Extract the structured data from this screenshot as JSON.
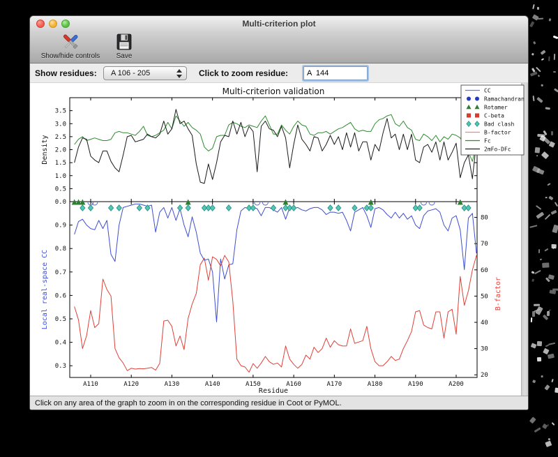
{
  "window": {
    "title": "Multi-criterion plot"
  },
  "toolbar": {
    "show_hide_label": "Show/hide controls",
    "save_label": "Save"
  },
  "controls": {
    "show_residues_label": "Show residues:",
    "show_residues_value": "A 106 - 205",
    "zoom_residue_label": "Click to zoom residue:",
    "zoom_residue_value": "A  144"
  },
  "status_bar": {
    "text": "Click on any area of the graph to zoom in on the corresponding residue in Coot or PyMOL."
  },
  "chart_data": {
    "type": "line",
    "title": "Multi-criterion validation",
    "x_label": "Residue",
    "x_range": [
      104.85,
      205.15
    ],
    "x_tick_values": [
      110,
      120,
      130,
      140,
      150,
      160,
      170,
      180,
      190,
      200
    ],
    "x_tick_labels": [
      "A110",
      "A120",
      "A130",
      "A140",
      "A150",
      "A160",
      "A170",
      "A180",
      "A190",
      "A200"
    ],
    "x_start": 106,
    "x_step": 1,
    "top_panel": {
      "y_label": "Density",
      "y_range": [
        0,
        4.0
      ],
      "y_tick_values": [
        0.0,
        0.5,
        1.0,
        1.5,
        2.0,
        2.5,
        3.0,
        3.5
      ],
      "y_tick_labels": [
        "0.0",
        "0.5",
        "1.0",
        "1.5",
        "2.0",
        "2.5",
        "3.0",
        "3.5"
      ],
      "series": [
        {
          "name": "Fc",
          "color": "#2e8b2e",
          "values": [
            2.2,
            2.4,
            2.5,
            2.35,
            2.4,
            2.45,
            2.4,
            2.35,
            2.35,
            2.4,
            2.65,
            2.7,
            2.65,
            2.65,
            2.6,
            2.55,
            2.7,
            2.9,
            2.55,
            2.5,
            2.55,
            2.65,
            2.75,
            3.05,
            2.8,
            3.3,
            3.1,
            2.9,
            3.05,
            2.85,
            2.75,
            2.6,
            2.1,
            1.95,
            2.05,
            2.5,
            2.55,
            2.55,
            2.95,
            3.05,
            3.0,
            2.9,
            2.85,
            2.95,
            2.9,
            2.85,
            3.1,
            3.3,
            2.95,
            2.6,
            2.6,
            2.95,
            2.75,
            2.6,
            2.9,
            3.1,
            2.95,
            2.9,
            2.6,
            2.55,
            2.65,
            2.65,
            2.7,
            2.6,
            2.7,
            2.8,
            2.85,
            2.95,
            3.05,
            2.8,
            2.7,
            2.75,
            2.7,
            2.7,
            3.0,
            3.15,
            3.2,
            3.3,
            3.35,
            3.0,
            2.9,
            3.1,
            2.85,
            2.75,
            2.4,
            2.35,
            2.6,
            2.5,
            2.35,
            2.55,
            2.3,
            2.5,
            2.4,
            2.6,
            2.55,
            2.45,
            2.2,
            1.9,
            1.55,
            2.2
          ]
        },
        {
          "name": "2mFo-DFc",
          "color": "#1a1a1a",
          "values": [
            1.5,
            2.1,
            2.45,
            2.4,
            1.75,
            1.6,
            1.5,
            1.95,
            1.95,
            1.55,
            1.3,
            1.15,
            1.8,
            2.5,
            2.55,
            2.3,
            2.35,
            2.4,
            2.6,
            2.5,
            2.45,
            2.6,
            3.1,
            2.6,
            2.8,
            3.55,
            3.0,
            3.1,
            2.8,
            2.55,
            1.45,
            0.75,
            0.7,
            1.45,
            0.85,
            1.5,
            2.3,
            2.55,
            2.5,
            3.1,
            2.6,
            3.05,
            2.5,
            2.9,
            2.7,
            1.15,
            2.9,
            3.1,
            2.8,
            2.75,
            2.5,
            2.9,
            2.45,
            1.3,
            2.2,
            2.95,
            2.4,
            2.2,
            1.95,
            2.5,
            2.45,
            1.95,
            2.2,
            2.55,
            2.2,
            2.5,
            2.0,
            2.65,
            2.1,
            2.65,
            1.95,
            2.3,
            2.3,
            1.6,
            2.2,
            1.95,
            2.65,
            3.2,
            2.45,
            2.6,
            2.0,
            2.6,
            2.0,
            2.6,
            1.6,
            1.5,
            2.1,
            2.2,
            1.9,
            2.3,
            1.6,
            2.3,
            1.6,
            1.9,
            2.25,
            0.92,
            1.5,
            1.8,
            0.88,
            2.3
          ]
        }
      ]
    },
    "bottom_panel": {
      "left_y_label": "Local real-space CC",
      "left_y_color": "#3c4fd6",
      "left_y_range": [
        0.25,
        1.0
      ],
      "left_y_tick_values": [
        0.3,
        0.4,
        0.5,
        0.6,
        0.7,
        0.8,
        0.9
      ],
      "left_y_tick_labels": [
        "0.3",
        "0.4",
        "0.5",
        "0.6",
        "0.7",
        "0.8",
        "0.9"
      ],
      "right_y_label": "B-factor",
      "right_y_color": "#e8423a",
      "right_y_range": [
        19,
        86
      ],
      "right_y_tick_values": [
        20,
        30,
        40,
        50,
        60,
        70,
        80
      ],
      "right_y_tick_labels": [
        "20",
        "30",
        "40",
        "50",
        "60",
        "70",
        "80"
      ],
      "series": [
        {
          "name": "CC",
          "axis": "left",
          "color": "#3d4ed0",
          "values": [
            0.86,
            0.915,
            0.925,
            0.9,
            0.885,
            0.88,
            0.92,
            0.885,
            0.92,
            0.775,
            0.745,
            0.9,
            0.975,
            0.98,
            0.985,
            0.99,
            0.99,
            0.985,
            0.98,
            0.985,
            0.87,
            0.955,
            0.975,
            0.93,
            0.975,
            0.92,
            0.97,
            0.9,
            0.85,
            0.935,
            0.87,
            0.78,
            0.75,
            0.755,
            0.7,
            0.487,
            0.755,
            0.67,
            0.73,
            0.735,
            0.88,
            0.96,
            0.975,
            0.97,
            0.975,
            0.97,
            0.94,
            0.975,
            0.975,
            0.965,
            0.955,
            0.975,
            0.925,
            0.975,
            0.97,
            0.975,
            0.965,
            0.96,
            0.97,
            0.975,
            0.975,
            0.965,
            0.945,
            0.955,
            0.955,
            0.95,
            0.955,
            0.92,
            0.875,
            0.955,
            0.965,
            0.975,
            0.94,
            0.89,
            0.97,
            0.975,
            0.965,
            0.945,
            0.93,
            0.955,
            0.93,
            0.95,
            0.925,
            0.94,
            0.9,
            0.885,
            0.94,
            0.96,
            0.965,
            0.97,
            0.955,
            0.9,
            0.875,
            0.93,
            0.94,
            0.88,
            0.71,
            0.93,
            0.95,
            0.78
          ]
        },
        {
          "name": "B-factor",
          "axis": "right",
          "color": "#df4038",
          "values": [
            46,
            41,
            30,
            35,
            44.5,
            38,
            39.5,
            56.5,
            52.5,
            50,
            30,
            26.5,
            24.5,
            21.6,
            22.5,
            22.2,
            22.4,
            22.3,
            22.5,
            22.8,
            21.8,
            24.4,
            40.5,
            40.8,
            38.5,
            31,
            34.8,
            29.6,
            41.5,
            47,
            51,
            62,
            64.5,
            56,
            65,
            64,
            61.5,
            65.5,
            63,
            48,
            26,
            23.5,
            23,
            21,
            24.3,
            22.5,
            24.5,
            27,
            25,
            24,
            24.5,
            23,
            31,
            26,
            24,
            22.5,
            24,
            27.5,
            26,
            30.5,
            28.5,
            30,
            34,
            30.5,
            33,
            31.5,
            31,
            31,
            37.5,
            32,
            32.5,
            33,
            38.5,
            30,
            25,
            23.5,
            23.5,
            25,
            27,
            25.5,
            26,
            30,
            33,
            36.5,
            44,
            44.5,
            39,
            38,
            37.5,
            44,
            44,
            34,
            44,
            45,
            35.5,
            57.5,
            46.5,
            52,
            60,
            65.5
          ]
        }
      ],
      "markers": {
        "rotamer": {
          "shape": "triangle",
          "fill": "#2e7d32",
          "residues": [
            106,
            107,
            108,
            134,
            158,
            179,
            201
          ]
        },
        "bad_clash": {
          "shape": "diamond",
          "fill": "#53c6b6",
          "stroke": "#1f8a7d",
          "residues": [
            108,
            110,
            115,
            117,
            122,
            124,
            132,
            134,
            138,
            139,
            140,
            144,
            149,
            150,
            155,
            158,
            159,
            160,
            169,
            171,
            175,
            178,
            179,
            190,
            191,
            202,
            203
          ]
        },
        "ramachandran": {
          "shape": "arc",
          "stroke": "#5560d8",
          "residues": [
            110,
            111,
            151,
            153,
            192,
            194
          ]
        }
      }
    },
    "legend": [
      {
        "label": "CC",
        "swatch": "line",
        "color": "#6b79e3"
      },
      {
        "label": "Ramachandran",
        "swatch": "circle",
        "color": "#2438c8"
      },
      {
        "label": "Rotamer",
        "swatch": "triangle",
        "color": "#2e7d32"
      },
      {
        "label": "C-beta",
        "swatch": "square",
        "color": "#d93a2b"
      },
      {
        "label": "Bad clash",
        "swatch": "diamond",
        "color": "#4cc4b2"
      },
      {
        "label": "B-factor",
        "swatch": "line",
        "color": "#f4877a"
      },
      {
        "label": "Fc",
        "swatch": "line",
        "color": "#2e8b2e"
      },
      {
        "label": "2mFo-DFc",
        "swatch": "line",
        "color": "#222222"
      }
    ]
  }
}
